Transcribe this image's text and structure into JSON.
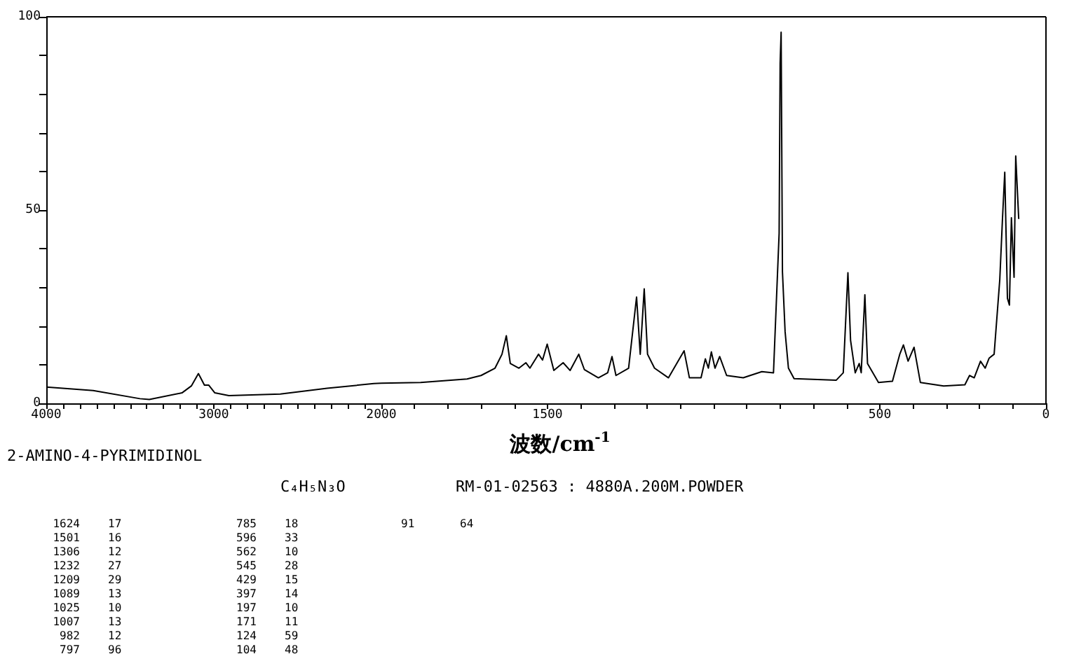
{
  "chart_data": [
    {
      "type": "line",
      "title": "2-AMINO-4-PYRIMIDINOL",
      "subtitle": "C₄H₅N₃O",
      "annotations": [
        "RM-01-02563 : 4880A.200M.POWDER",
        "1624 17",
        "1501 16",
        "1306 12",
        "1232 27",
        "1209 29",
        "1089 13",
        "1025 10",
        "1007 13",
        "982 12",
        "797 96",
        "785 18",
        "596 33",
        "562 10",
        "545 28",
        "429 15",
        "397 14",
        "197 10",
        "171 11",
        "124 59",
        "104 48",
        "91 64"
      ],
      "xlim": [
        4000,
        2000
      ],
      "ylim": [
        0,
        100
      ],
      "xticks": [
        4000,
        {
          "value": 3900,
          "label": null
        },
        {
          "value": 3800,
          "label": null
        },
        {
          "value": 3700,
          "label": null
        },
        {
          "value": 3600,
          "label": null
        },
        {
          "value": 3500,
          "label": null
        },
        {
          "value": 3400,
          "label": null
        },
        {
          "value": 3300,
          "label": null
        },
        {
          "value": 3200,
          "label": null
        },
        {
          "value": 3100,
          "label": null
        },
        3000,
        {
          "value": 2900,
          "label": null
        },
        {
          "value": 2800,
          "label": null
        },
        {
          "value": 2700,
          "label": null
        },
        {
          "value": 2600,
          "label": null
        },
        {
          "value": 2500,
          "label": null
        },
        {
          "value": 2400,
          "label": null
        },
        {
          "value": 2300,
          "label": null
        },
        {
          "value": 2200,
          "label": null
        },
        {
          "value": 2100,
          "label": null
        }
      ],
      "yticks": [
        0,
        {
          "value": 10,
          "label": null
        },
        {
          "value": 20,
          "label": null
        },
        {
          "value": 30,
          "label": null
        },
        {
          "value": 40,
          "label": null
        },
        50,
        {
          "value": 60,
          "label": null
        },
        {
          "value": 70,
          "label": null
        },
        {
          "value": 80,
          "label": null
        },
        {
          "value": 90,
          "label": null
        },
        100
      ],
      "grid": false,
      "marker": "none",
      "line_style": "solid",
      "series": [
        {
          "color": "#000000",
          "x": [
            4000,
            3720,
            3441,
            3385,
            3190,
            3134,
            3092,
            3056,
            3030,
            2994,
            2910,
            2603,
            2324,
            2045,
            2000
          ],
          "values": [
            4.2,
            3.3,
            1.2,
            1.0,
            2.7,
            4.5,
            7.7,
            4.7,
            4.7,
            2.7,
            2.0,
            2.4,
            3.9,
            5.1,
            5.2
          ]
        }
      ]
    },
    {
      "type": "line",
      "xlabel": "波数/cm$^{-1}$",
      "xlim": [
        2000,
        0
      ],
      "ylim": [
        0,
        100
      ],
      "tick_labels": "x",
      "xticks": [
        2000,
        {
          "value": 1900,
          "label": null
        },
        {
          "value": 1800,
          "label": null
        },
        {
          "value": 1700,
          "label": null
        },
        {
          "value": 1600,
          "label": null
        },
        1500,
        {
          "value": 1400,
          "label": null
        },
        {
          "value": 1300,
          "label": null
        },
        {
          "value": 1200,
          "label": null
        },
        {
          "value": 1100,
          "label": null
        },
        {
          "value": 1000,
          "label": null
        },
        {
          "value": 900,
          "label": null
        },
        {
          "value": 800,
          "label": null
        },
        {
          "value": 700,
          "label": null
        },
        {
          "value": 600,
          "label": null
        },
        500,
        {
          "value": 400,
          "label": null
        },
        {
          "value": 300,
          "label": null
        },
        {
          "value": 200,
          "label": null
        },
        {
          "value": 100,
          "label": null
        },
        0
      ],
      "grid": false,
      "marker": "none",
      "line_style": "solid",
      "series": [
        {
          "color": "#000000",
          "x": [
            2000,
            1882,
            1742,
            1700,
            1658,
            1637,
            1624,
            1612,
            1586,
            1565,
            1553,
            1527,
            1515,
            1501,
            1481,
            1453,
            1432,
            1406,
            1389,
            1347,
            1319,
            1306,
            1294,
            1256,
            1232,
            1221,
            1209,
            1199,
            1178,
            1136,
            1089,
            1073,
            1038,
            1025,
            1016,
            1007,
            996,
            982,
            961,
            911,
            855,
            820,
            803,
            800,
            797,
            793,
            785,
            775,
            758,
            631,
            610,
            596,
            588,
            574,
            562,
            556,
            545,
            537,
            504,
            462,
            440,
            429,
            415,
            397,
            378,
            308,
            244,
            230,
            216,
            197,
            183,
            171,
            156,
            139,
            131,
            124,
            116,
            110,
            104,
            96,
            91,
            82
          ],
          "values": [
            5.2,
            5.4,
            6.3,
            7.2,
            9.1,
            12.7,
            17.5,
            10.3,
            9.1,
            10.5,
            9.1,
            12.7,
            11.2,
            15.3,
            8.5,
            10.5,
            8.5,
            12.7,
            8.7,
            6.6,
            7.9,
            12.1,
            7.2,
            9.1,
            27.5,
            12.7,
            29.6,
            12.7,
            9.1,
            6.6,
            13.6,
            6.6,
            6.6,
            11.5,
            9.1,
            13.3,
            9.1,
            12.1,
            7.2,
            6.6,
            8.2,
            7.9,
            44,
            88,
            96,
            34,
            18.5,
            9.1,
            6.4,
            6.0,
            7.9,
            33.8,
            16.3,
            7.9,
            10.3,
            7.9,
            28.1,
            10.3,
            5.4,
            5.7,
            12.7,
            15.1,
            10.9,
            14.5,
            5.4,
            4.5,
            4.8,
            7.2,
            6.6,
            10.9,
            9.1,
            11.7,
            12.7,
            32,
            47.5,
            59.8,
            27.2,
            25.4,
            48,
            32.6,
            64,
            47.7
          ]
        }
      ]
    }
  ]
}
